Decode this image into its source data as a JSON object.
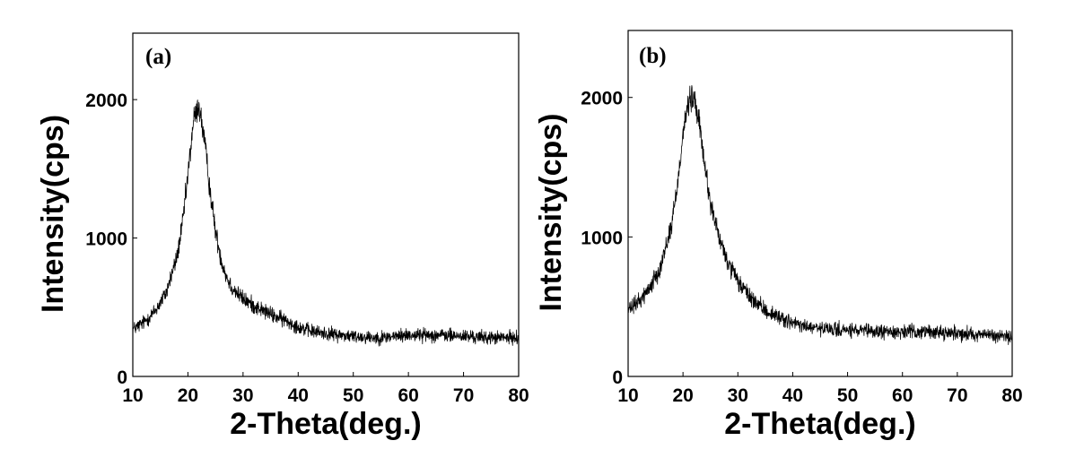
{
  "chart_data": [
    {
      "type": "line",
      "panel_label": "(a)",
      "xlabel": "2-Theta(deg.)",
      "ylabel": "Intensity(cps)",
      "xlim": [
        10,
        80
      ],
      "ylim": [
        0,
        2480
      ],
      "xticks": [
        10,
        20,
        30,
        40,
        50,
        60,
        70,
        80
      ],
      "yticks": [
        0,
        1000,
        2000
      ],
      "grid": false,
      "series": [
        {
          "x": [
            10,
            12,
            14,
            16,
            18,
            19,
            20,
            21,
            22,
            23,
            24,
            25,
            26,
            27,
            28,
            30,
            32,
            34,
            36,
            38,
            40,
            42,
            45,
            50,
            55,
            60,
            65,
            70,
            75,
            80
          ],
          "y": [
            340,
            390,
            470,
            600,
            860,
            1100,
            1450,
            1850,
            1960,
            1700,
            1350,
            1050,
            850,
            720,
            640,
            560,
            510,
            470,
            430,
            400,
            360,
            330,
            310,
            290,
            280,
            300,
            300,
            290,
            280,
            280
          ]
        }
      ]
    },
    {
      "type": "line",
      "panel_label": "(b)",
      "xlabel": "2-Theta(deg.)",
      "ylabel": "Intensity(cps)",
      "xlim": [
        10,
        80
      ],
      "ylim": [
        0,
        2480
      ],
      "xticks": [
        10,
        20,
        30,
        40,
        50,
        60,
        70,
        80
      ],
      "yticks": [
        0,
        1000,
        2000
      ],
      "grid": false,
      "series": [
        {
          "x": [
            10,
            12,
            14,
            16,
            18,
            19,
            20,
            21,
            22,
            23,
            24,
            25,
            26,
            27,
            28,
            30,
            32,
            34,
            36,
            38,
            40,
            42,
            45,
            50,
            55,
            60,
            65,
            70,
            75,
            80
          ],
          "y": [
            470,
            540,
            640,
            800,
            1100,
            1380,
            1750,
            1960,
            2000,
            1800,
            1500,
            1250,
            1080,
            940,
            830,
            680,
            580,
            500,
            450,
            420,
            380,
            360,
            340,
            330,
            320,
            320,
            320,
            310,
            300,
            280
          ]
        }
      ]
    }
  ]
}
